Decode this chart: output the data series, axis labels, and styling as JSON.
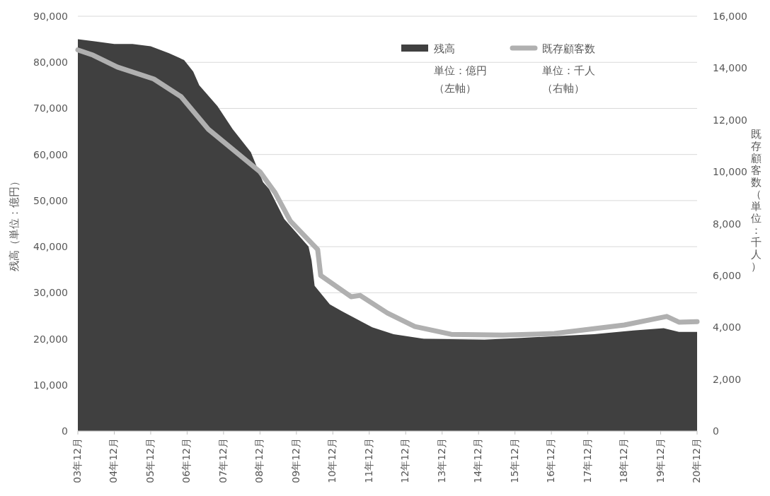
{
  "chart_data": {
    "type": "area",
    "ylabel": "残高（単位：億円）",
    "y2label": "既存顧客数（単位：千人）",
    "xlim": [
      "2003-12",
      "2020-12"
    ],
    "xticks": [
      {
        "value": "2003-12",
        "label": "03年12月"
      },
      {
        "value": "2004-12",
        "label": "04年12月"
      },
      {
        "value": "2005-12",
        "label": "05年12月"
      },
      {
        "value": "2006-12",
        "label": "06年12月"
      },
      {
        "value": "2007-12",
        "label": "07年12月"
      },
      {
        "value": "2008-12",
        "label": "08年12月"
      },
      {
        "value": "2009-12",
        "label": "09年12月"
      },
      {
        "value": "2010-12",
        "label": "10年12月"
      },
      {
        "value": "2011-12",
        "label": "11年12月"
      },
      {
        "value": "2012-12",
        "label": "12年12月"
      },
      {
        "value": "2013-12",
        "label": "13年12月"
      },
      {
        "value": "2014-12",
        "label": "14年12月"
      },
      {
        "value": "2015-12",
        "label": "15年12月"
      },
      {
        "value": "2016-12",
        "label": "16年12月"
      },
      {
        "value": "2017-12",
        "label": "17年12月"
      },
      {
        "value": "2018-12",
        "label": "18年12月"
      },
      {
        "value": "2019-12",
        "label": "19年12月"
      },
      {
        "value": "2020-12",
        "label": "20年12月"
      }
    ],
    "ylim": [
      0,
      90000
    ],
    "yticks": [
      {
        "value": 0,
        "label": "0"
      },
      {
        "value": 10000,
        "label": "10,000"
      },
      {
        "value": 20000,
        "label": "20,000"
      },
      {
        "value": 30000,
        "label": "30,000"
      },
      {
        "value": 40000,
        "label": "40,000"
      },
      {
        "value": 50000,
        "label": "50,000"
      },
      {
        "value": 60000,
        "label": "60,000"
      },
      {
        "value": 70000,
        "label": "70,000"
      },
      {
        "value": 80000,
        "label": "80,000"
      },
      {
        "value": 90000,
        "label": "90,000"
      }
    ],
    "y2lim": [
      0,
      16000
    ],
    "y2ticks": [
      {
        "value": 0,
        "label": "0"
      },
      {
        "value": 2000,
        "label": "2,000"
      },
      {
        "value": 4000,
        "label": "4,000"
      },
      {
        "value": 6000,
        "label": "6,000"
      },
      {
        "value": 8000,
        "label": "8,000"
      },
      {
        "value": 10000,
        "label": "10,000"
      },
      {
        "value": 12000,
        "label": "12,000"
      },
      {
        "value": 14000,
        "label": "14,000"
      },
      {
        "value": 16000,
        "label": "16,000"
      }
    ],
    "grid": "y",
    "legend": "top right",
    "annotations": [
      "単位：億円（左軸）",
      "単位：千人（右軸）"
    ],
    "series": [
      {
        "name": "残高",
        "type": "area",
        "color": "#404040",
        "x": [
          "2003-12",
          "2004-06",
          "2004-12",
          "2005-06",
          "2005-12",
          "2006-06",
          "2006-11",
          "2007-02",
          "2007-04",
          "2007-10",
          "2008-03",
          "2008-09",
          "2009-01",
          "2009-03",
          "2009-08",
          "2010-04",
          "2010-05",
          "2010-06",
          "2010-11",
          "2011-03",
          "2012-01",
          "2012-08",
          "2013-06",
          "2015-02",
          "2016-02",
          "2018-02",
          "2019-03",
          "2020-01",
          "2020-06",
          "2020-12"
        ],
        "values": [
          85000,
          84500,
          84000,
          84000,
          83500,
          82000,
          80500,
          78000,
          75000,
          70500,
          65500,
          60500,
          54000,
          52500,
          46000,
          40000,
          37000,
          31500,
          27500,
          26000,
          22500,
          21000,
          20000,
          19800,
          20200,
          21000,
          21800,
          22300,
          21500,
          21500
        ]
      },
      {
        "name": "既存顧客数",
        "type": "line",
        "axis": "y2",
        "color": "#b0b0b0",
        "line_style": "solid",
        "x": [
          "2003-12",
          "2004-05",
          "2005-01",
          "2006-01",
          "2006-10",
          "2007-07",
          "2008-12",
          "2009-05",
          "2009-10",
          "2010-07",
          "2010-08",
          "2011-06",
          "2011-09",
          "2012-06",
          "2013-03",
          "2014-03",
          "2015-08",
          "2017-01",
          "2018-12",
          "2020-02",
          "2020-06",
          "2020-12"
        ],
        "values": [
          14700,
          14500,
          14040,
          13580,
          12900,
          11640,
          10000,
          9190,
          8100,
          7000,
          6000,
          5180,
          5230,
          4550,
          4030,
          3730,
          3700,
          3760,
          4090,
          4420,
          4200,
          4220
        ]
      }
    ]
  }
}
